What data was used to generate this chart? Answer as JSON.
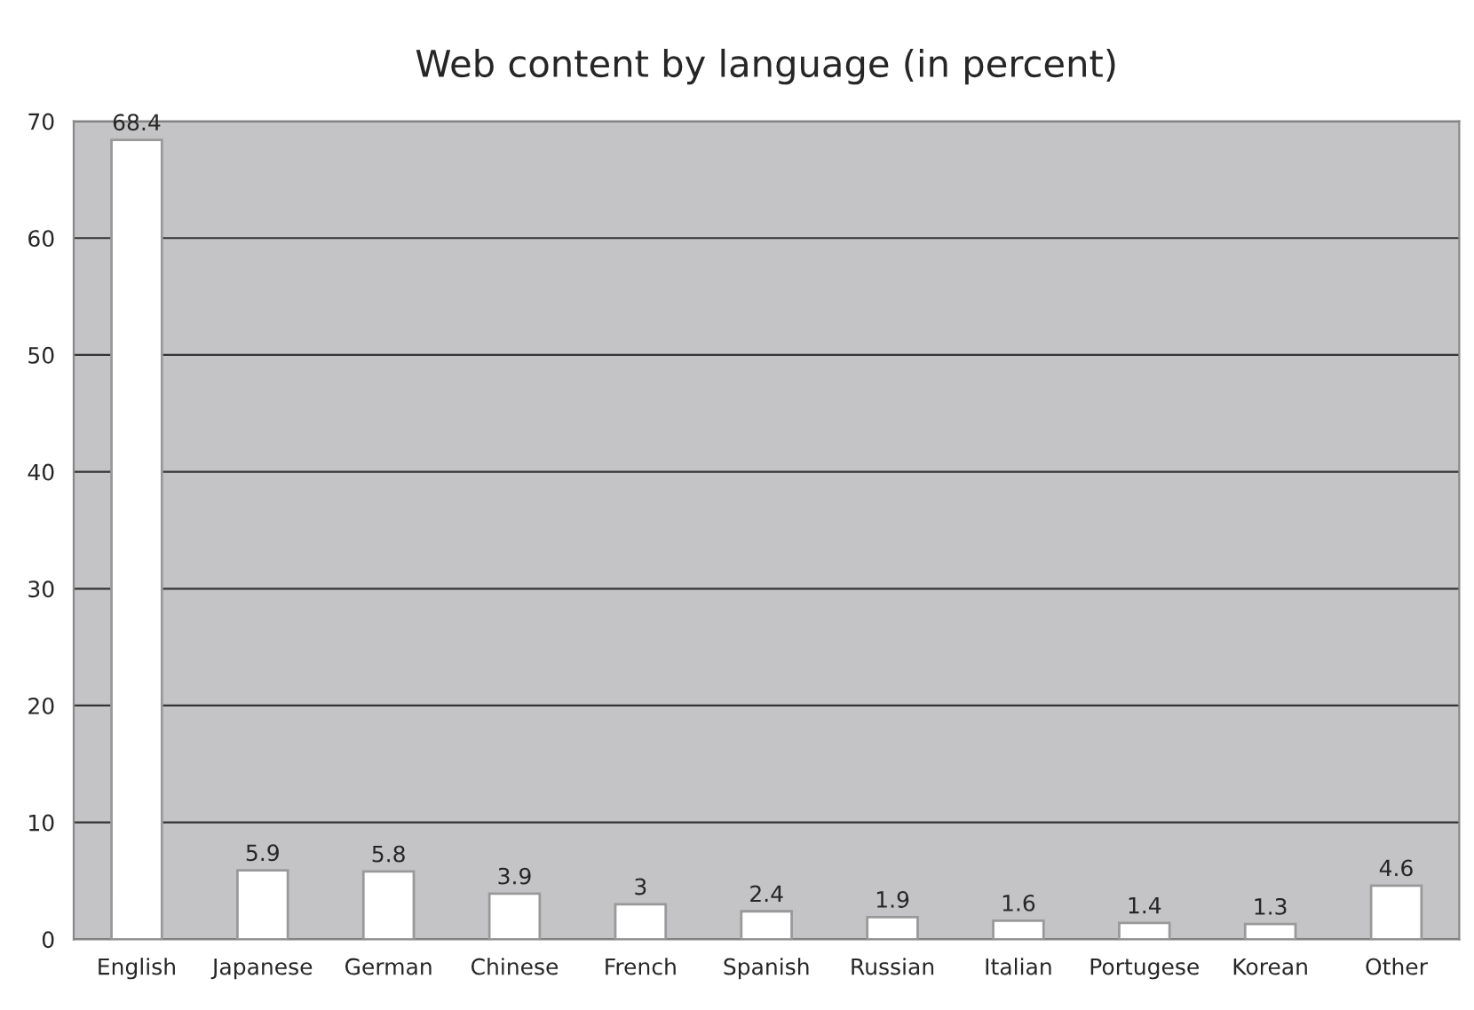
{
  "chart_data": {
    "type": "bar",
    "title": "Web content by language (in percent)",
    "categories": [
      "English",
      "Japanese",
      "German",
      "Chinese",
      "French",
      "Spanish",
      "Russian",
      "Italian",
      "Portugese",
      "Korean",
      "Other"
    ],
    "values": [
      68.4,
      5.9,
      5.8,
      3.9,
      3,
      2.4,
      1.9,
      1.6,
      1.4,
      1.3,
      4.6
    ],
    "color": "#ffffff",
    "ylim": [
      0,
      70
    ],
    "yticks": [
      0,
      10,
      20,
      30,
      40,
      50,
      60,
      70
    ],
    "grid": "y",
    "data_labels": true
  }
}
